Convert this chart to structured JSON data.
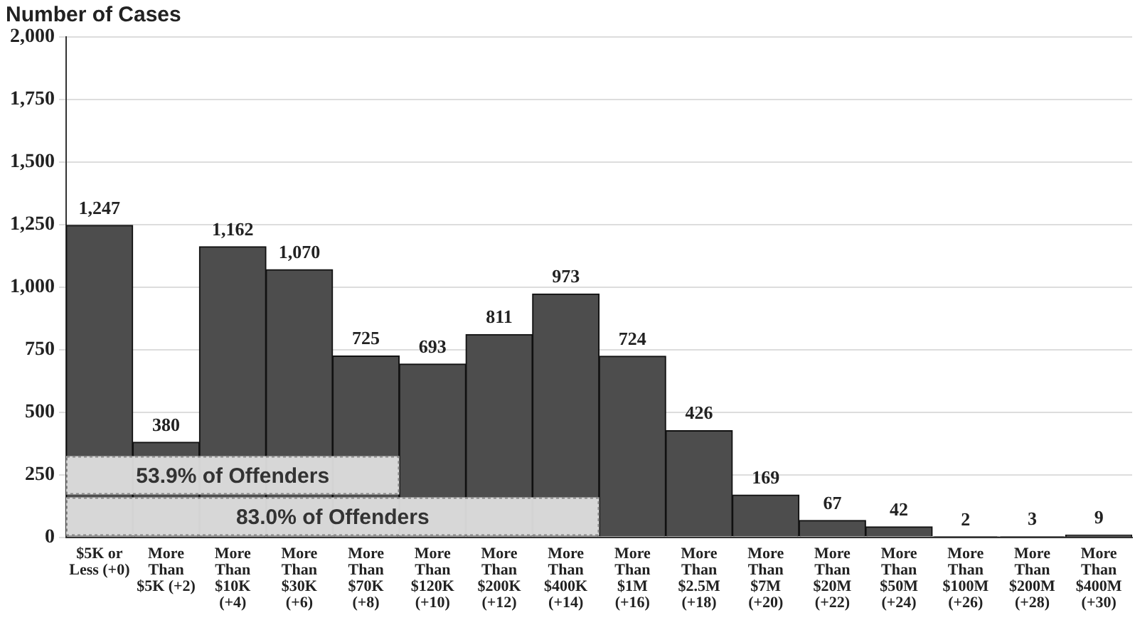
{
  "chart_data": {
    "type": "bar",
    "title": "Number of Cases",
    "categories": [
      "$5K or\nLess (+0)",
      "More\nThan\n$5K (+2)",
      "More\nThan\n$10K\n(+4)",
      "More\nThan\n$30K\n(+6)",
      "More\nThan\n$70K\n(+8)",
      "More\nThan\n$120K\n(+10)",
      "More\nThan\n$200K\n(+12)",
      "More\nThan\n$400K\n(+14)",
      "More\nThan\n$1M\n(+16)",
      "More\nThan\n$2.5M\n(+18)",
      "More\nThan\n$7M\n(+20)",
      "More\nThan\n$20M\n(+22)",
      "More\nThan\n$50M\n(+24)",
      "More\nThan\n$100M\n(+26)",
      "More\nThan\n$200M\n(+28)",
      "More\nThan\n$400M\n(+30)"
    ],
    "values": [
      1247,
      380,
      1162,
      1070,
      725,
      693,
      811,
      973,
      724,
      426,
      169,
      67,
      42,
      2,
      3,
      9
    ],
    "color": "#4d4d4d",
    "value_labels": [
      "1,247",
      "380",
      "1,162",
      "1,070",
      "725",
      "693",
      "811",
      "973",
      "724",
      "426",
      "169",
      "67",
      "42",
      "2",
      "3",
      "9"
    ],
    "ylim": [
      0,
      2000
    ],
    "yticks": [
      0,
      250,
      500,
      750,
      {
        "value": 1000,
        "label": "1,000"
      },
      {
        "value": 1250,
        "label": "1,250"
      },
      {
        "value": 1500,
        "label": "1,500"
      },
      {
        "value": 1750,
        "label": "1,750"
      },
      {
        "value": 2000,
        "label": "2,000"
      }
    ],
    "grid": "y",
    "bands": [
      {
        "axis": "x",
        "from": "$5K or\nLess (+0)",
        "to": "More\nThan\n$70K\n(+8)",
        "label": "53.9% of Offenders"
      },
      {
        "axis": "x",
        "from": "$5K or\nLess (+0)",
        "to": "More\nThan\n$400K\n(+14)",
        "label": "83.0% of Offenders"
      }
    ]
  }
}
